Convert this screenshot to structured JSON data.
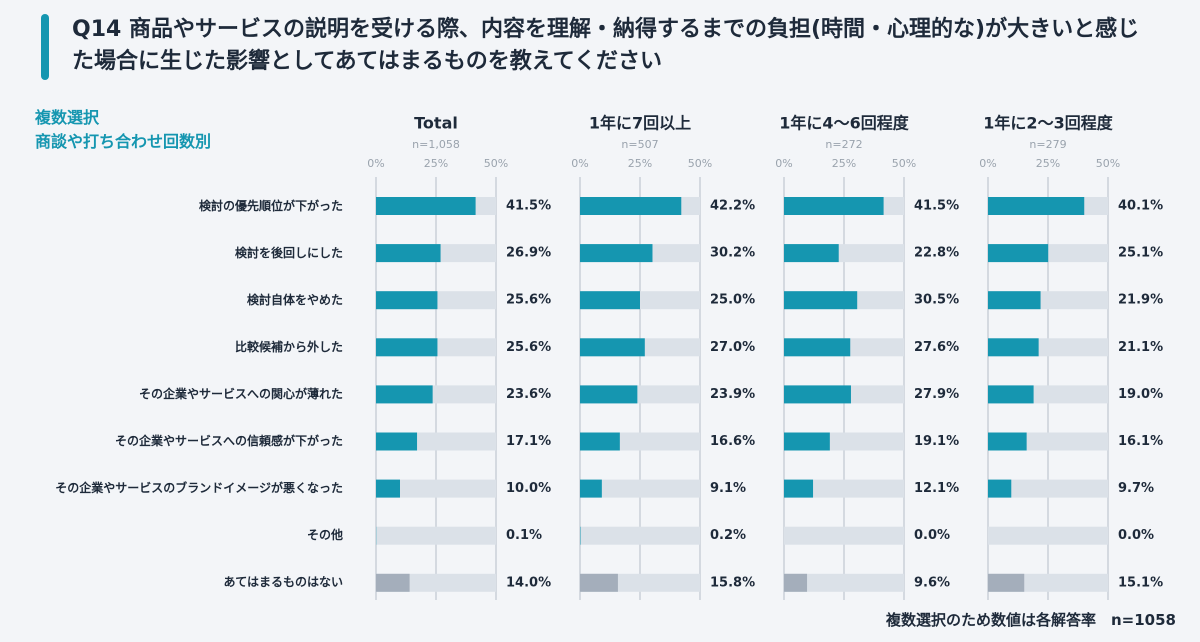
{
  "title": "Q14 商品やサービスの説明を受ける際、内容を理解・納得するまでの負担(時間・心理的な)が大きいと感じた場合に生じた影響としてあてはまるものを教えてください",
  "label_lines": [
    "複数選択",
    "商談や打ち合わせ回数別"
  ],
  "footnote": "複数選択のため数値は各解答率　n=1058",
  "chart_data": [
    {
      "type": "bar",
      "orientation": "horizontal",
      "title": "Total",
      "subtitle": "n=1,058",
      "categories": [
        "検討の優先順位が下がった",
        "検討を後回しにした",
        "検討自体をやめた",
        "比較候補から外した",
        "その企業やサービスへの関心が薄れた",
        "その企業やサービスへの信頼感が下がった",
        "その企業やサービスのブランドイメージが悪くなった",
        "その他",
        "あてはまるものはない"
      ],
      "values": [
        41.5,
        26.9,
        25.6,
        25.6,
        23.6,
        17.1,
        10.0,
        0.1,
        14.0
      ],
      "value_labels": [
        "41.5%",
        "26.9%",
        "25.6%",
        "25.6%",
        "23.6%",
        "17.1%",
        "10.0%",
        "0.1%",
        "14.0%"
      ],
      "colors": [
        "#1596b0",
        "#1596b0",
        "#1596b0",
        "#1596b0",
        "#1596b0",
        "#1596b0",
        "#1596b0",
        "#1596b0",
        "#a4aebb"
      ],
      "xlim": [
        0,
        50
      ],
      "xticks": [
        {
          "value": 0,
          "label": "0%"
        },
        {
          "value": 25,
          "label": "25%"
        },
        {
          "value": 50,
          "label": "50%"
        }
      ],
      "grid": true
    },
    {
      "type": "bar",
      "orientation": "horizontal",
      "title": "1年に7回以上",
      "subtitle": "n=507",
      "values": [
        42.2,
        30.2,
        25.0,
        27.0,
        23.9,
        16.6,
        9.1,
        0.2,
        15.8
      ],
      "value_labels": [
        "42.2%",
        "30.2%",
        "25.0%",
        "27.0%",
        "23.9%",
        "16.6%",
        "9.1%",
        "0.2%",
        "15.8%"
      ],
      "colors": [
        "#1596b0",
        "#1596b0",
        "#1596b0",
        "#1596b0",
        "#1596b0",
        "#1596b0",
        "#1596b0",
        "#1596b0",
        "#a4aebb"
      ],
      "xlim": [
        0,
        50
      ],
      "xticks": [
        {
          "value": 0,
          "label": "0%"
        },
        {
          "value": 25,
          "label": "25%"
        },
        {
          "value": 50,
          "label": "50%"
        }
      ],
      "grid": true
    },
    {
      "type": "bar",
      "orientation": "horizontal",
      "title": "1年に4〜6回程度",
      "subtitle": "n=272",
      "values": [
        41.5,
        22.8,
        30.5,
        27.6,
        27.9,
        19.1,
        12.1,
        0.0,
        9.6
      ],
      "value_labels": [
        "41.5%",
        "22.8%",
        "30.5%",
        "27.6%",
        "27.9%",
        "19.1%",
        "12.1%",
        "0.0%",
        "9.6%"
      ],
      "colors": [
        "#1596b0",
        "#1596b0",
        "#1596b0",
        "#1596b0",
        "#1596b0",
        "#1596b0",
        "#1596b0",
        "#1596b0",
        "#a4aebb"
      ],
      "xlim": [
        0,
        50
      ],
      "xticks": [
        {
          "value": 0,
          "label": "0%"
        },
        {
          "value": 25,
          "label": "25%"
        },
        {
          "value": 50,
          "label": "50%"
        }
      ],
      "grid": true
    },
    {
      "type": "bar",
      "orientation": "horizontal",
      "title": "1年に2〜3回程度",
      "subtitle": "n=279",
      "values": [
        40.1,
        25.1,
        21.9,
        21.1,
        19.0,
        16.1,
        9.7,
        0.0,
        15.1
      ],
      "value_labels": [
        "40.1%",
        "25.1%",
        "21.9%",
        "21.1%",
        "19.0%",
        "16.1%",
        "9.7%",
        "0.0%",
        "15.1%"
      ],
      "colors": [
        "#1596b0",
        "#1596b0",
        "#1596b0",
        "#1596b0",
        "#1596b0",
        "#1596b0",
        "#1596b0",
        "#1596b0",
        "#a4aebb"
      ],
      "xlim": [
        0,
        50
      ],
      "xticks": [
        {
          "value": 0,
          "label": "0%"
        },
        {
          "value": 25,
          "label": "25%"
        },
        {
          "value": 50,
          "label": "50%"
        }
      ],
      "grid": true
    }
  ]
}
